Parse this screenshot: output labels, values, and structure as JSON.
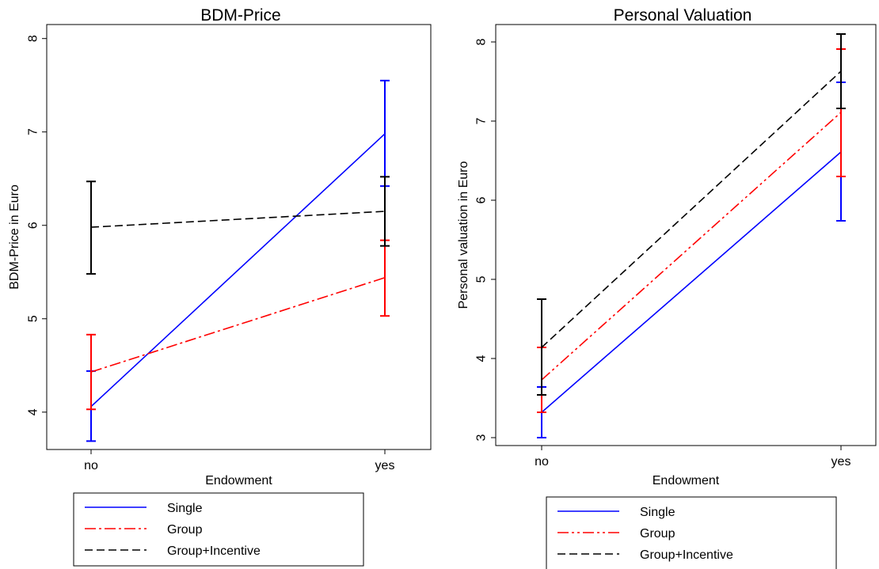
{
  "chart_data": [
    {
      "type": "line",
      "title": "BDM-Price",
      "xlabel": "Endowment",
      "ylabel": "BDM-Price in Euro",
      "categories": [
        "no",
        "yes"
      ],
      "ylim": [
        3.6,
        8.15
      ],
      "yticks": [
        4,
        5,
        6,
        7,
        8
      ],
      "ytick_labels": [
        "4",
        "5",
        "6",
        "7",
        "8"
      ],
      "grid": false,
      "legend_position": "bottom",
      "series": [
        {
          "name": "Single",
          "color": "#0000ff",
          "dash": "solid",
          "values": [
            4.06,
            6.98
          ],
          "ci_low": [
            3.69,
            6.42
          ],
          "ci_high": [
            4.44,
            7.55
          ]
        },
        {
          "name": "Group",
          "color": "#ff0000",
          "dash": "dashdot",
          "values": [
            4.43,
            5.44
          ],
          "ci_low": [
            4.03,
            5.03
          ],
          "ci_high": [
            4.83,
            5.84
          ]
        },
        {
          "name": "Group+Incentive",
          "color": "#000000",
          "dash": "dashed",
          "values": [
            5.98,
            6.15
          ],
          "ci_low": [
            5.48,
            5.78
          ],
          "ci_high": [
            6.47,
            6.52
          ]
        }
      ]
    },
    {
      "type": "line",
      "title": "Personal Valuation",
      "xlabel": "Endowment",
      "ylabel": "Personal valuation in Euro",
      "categories": [
        "no",
        "yes"
      ],
      "ylim": [
        2.9,
        8.22
      ],
      "yticks": [
        3,
        4,
        5,
        6,
        7,
        8
      ],
      "ytick_labels": [
        "3",
        "4",
        "5",
        "6",
        "7",
        "8"
      ],
      "grid": false,
      "legend_position": "bottom",
      "series": [
        {
          "name": "Single",
          "color": "#0000ff",
          "dash": "solid",
          "values": [
            3.32,
            6.61
          ],
          "ci_low": [
            3.0,
            5.74
          ],
          "ci_high": [
            3.64,
            7.49
          ]
        },
        {
          "name": "Group",
          "color": "#ff0000",
          "dash": "dashdotdot",
          "values": [
            3.73,
            7.11
          ],
          "ci_low": [
            3.32,
            6.3
          ],
          "ci_high": [
            4.14,
            7.91
          ]
        },
        {
          "name": "Group+Incentive",
          "color": "#000000",
          "dash": "dashed",
          "values": [
            4.14,
            7.63
          ],
          "ci_low": [
            3.54,
            7.16
          ],
          "ci_high": [
            4.75,
            8.1
          ]
        }
      ]
    }
  ]
}
